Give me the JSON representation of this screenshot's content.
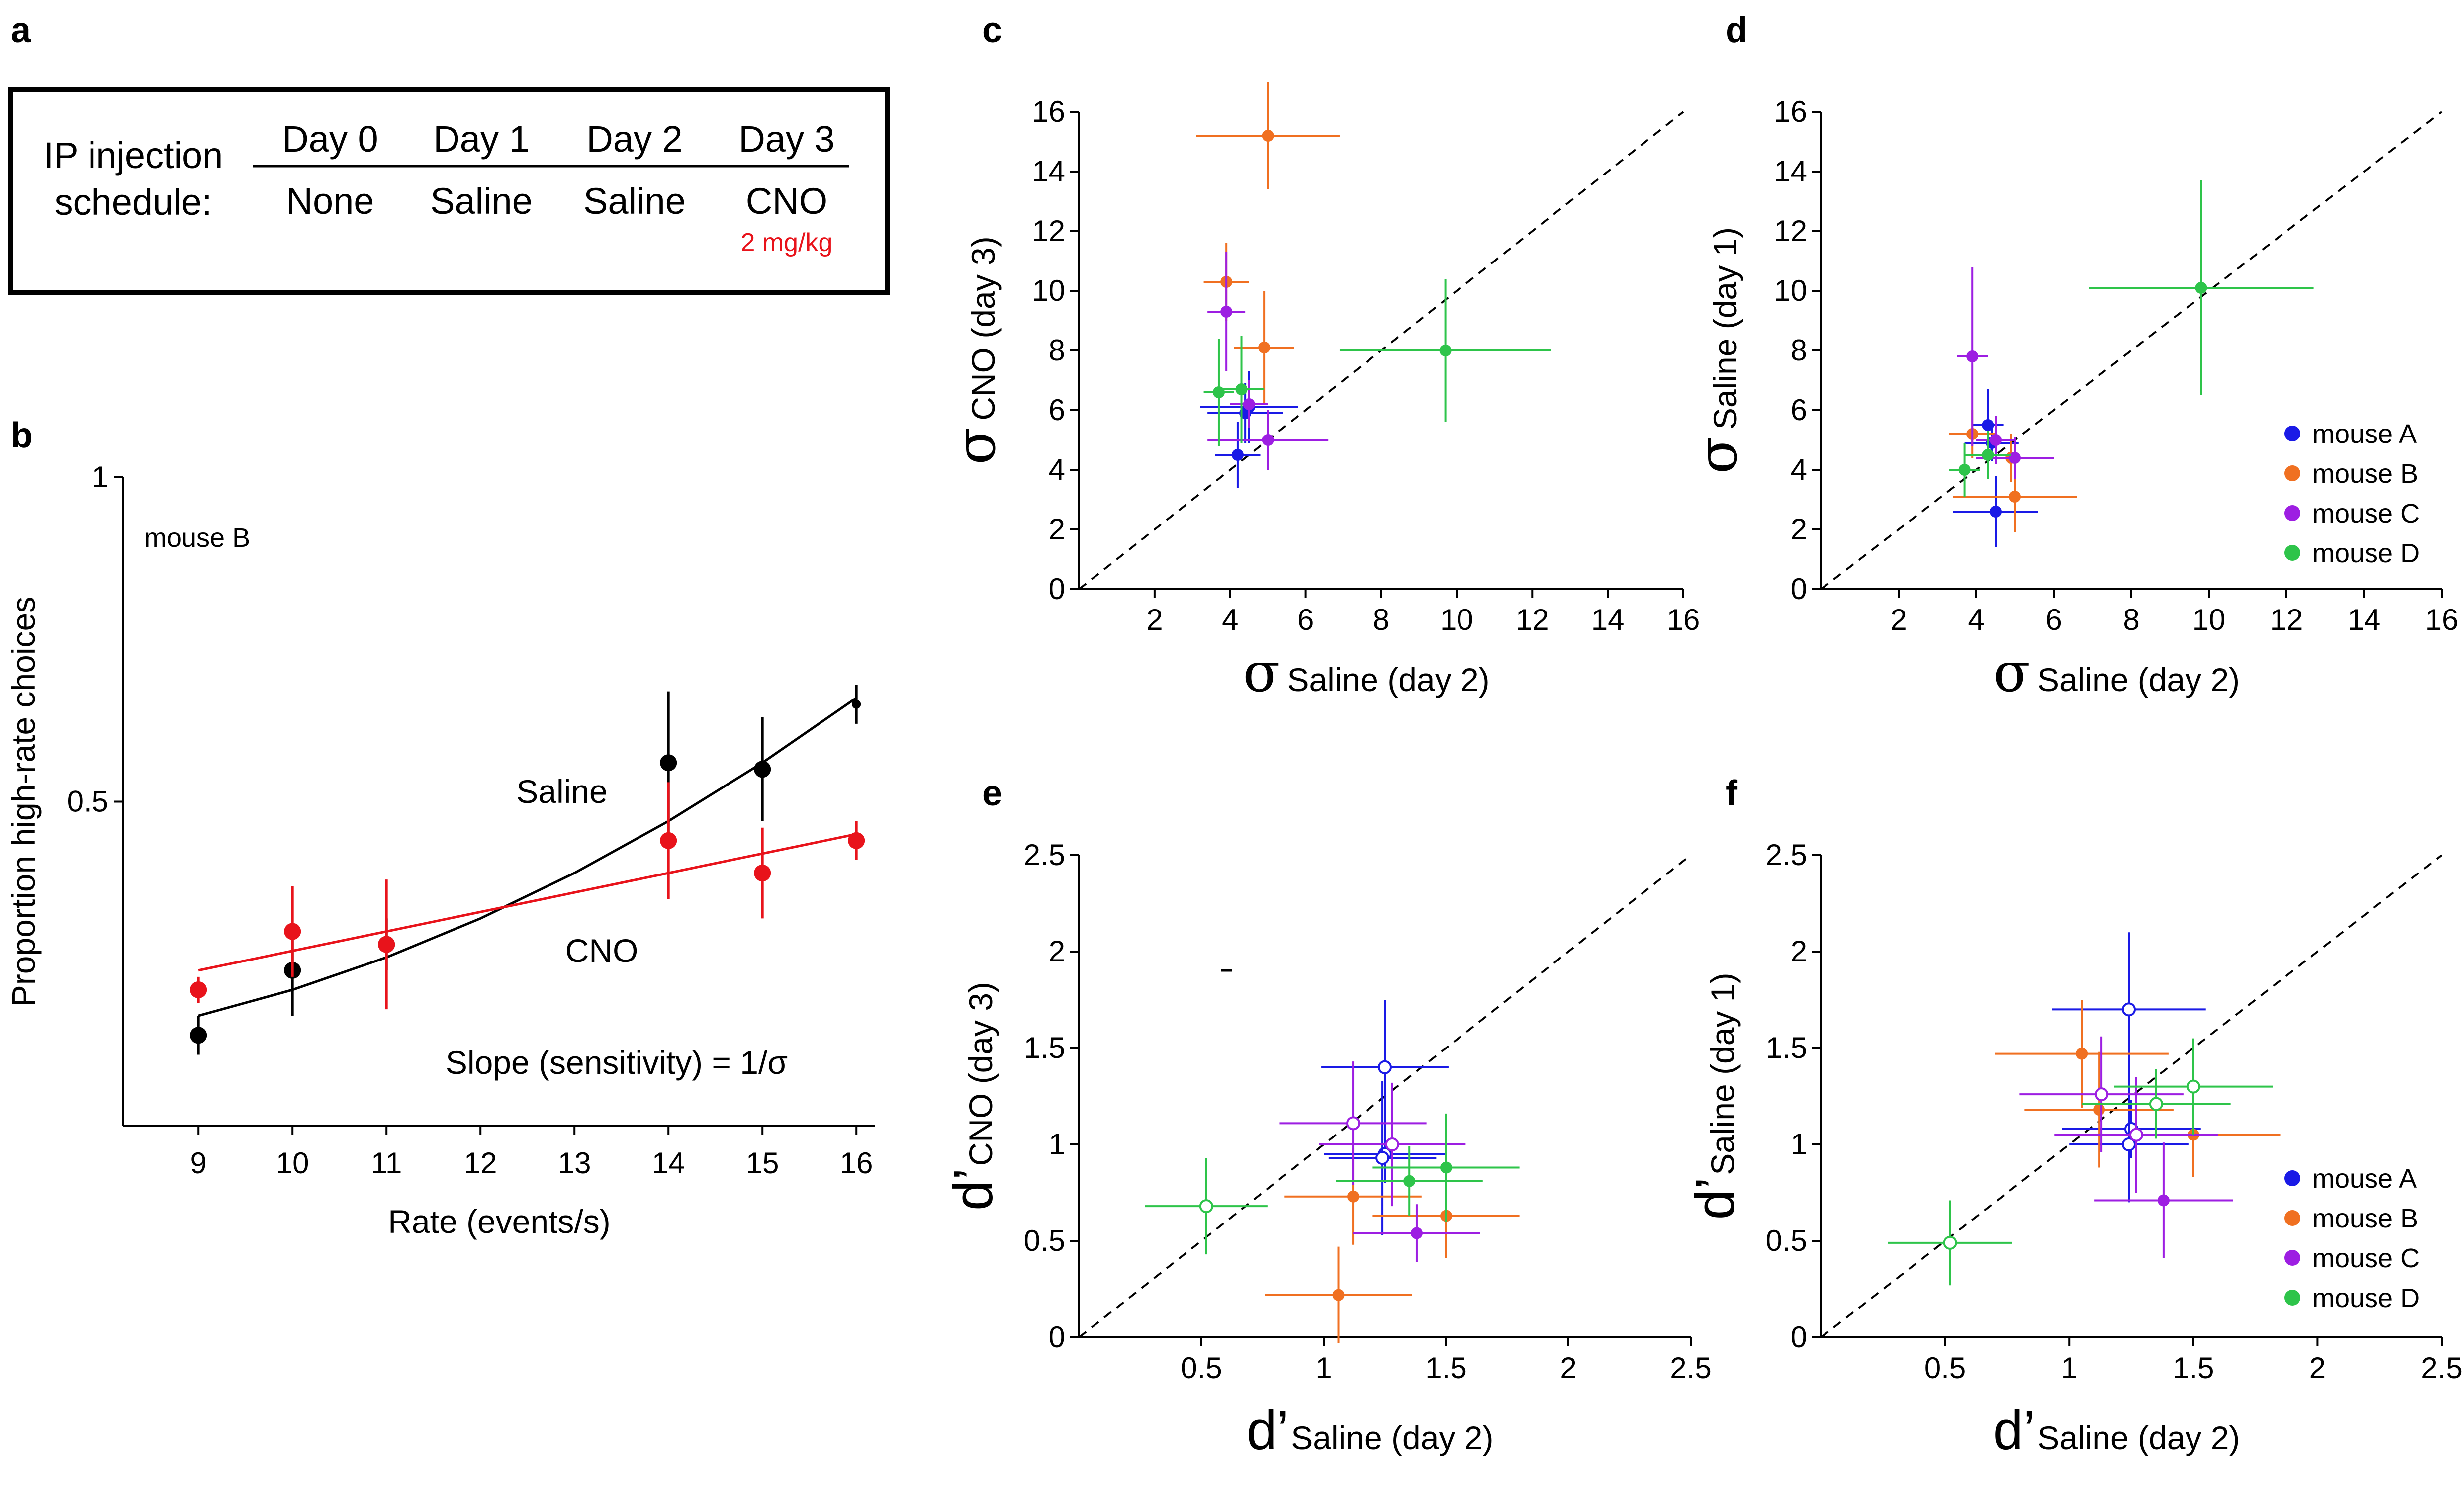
{
  "panels": {
    "a": "a",
    "b": "b",
    "c": "c",
    "d": "d",
    "e": "e",
    "f": "f"
  },
  "schedule": {
    "heading_line1": "IP injection",
    "heading_line2": "schedule:",
    "days": [
      "Day 0",
      "Day 1",
      "Day 2",
      "Day 3"
    ],
    "treatments": [
      "None",
      "Saline",
      "Saline",
      "CNO"
    ],
    "cno_dose": "2 mg/kg",
    "colors": {
      "text": "#000000",
      "cno": "#e8131b"
    }
  },
  "chart_data": [
    {
      "id": "b",
      "type": "scatter",
      "annotation": "mouse B",
      "ylabel": "Proportion high-rate choices",
      "xlabel": "Rate (events/s)",
      "xlim": [
        8.2,
        16.2
      ],
      "ylim": [
        0,
        1
      ],
      "xticks": [
        9,
        10,
        11,
        12,
        13,
        14,
        15,
        16
      ],
      "yticks": [
        {
          "v": 0.5,
          "label": "0.5"
        },
        {
          "v": 1,
          "label": "1"
        }
      ],
      "series": [
        {
          "name": "Saline",
          "color": "#000000",
          "x": [
            9,
            10,
            11,
            14,
            15,
            16
          ],
          "y": [
            0.14,
            0.24,
            0.28,
            0.56,
            0.55,
            0.65
          ],
          "err": [
            0.03,
            0.07,
            0.04,
            0.11,
            0.08,
            0.03
          ],
          "fit_x": [
            9,
            10,
            11,
            12,
            13,
            14,
            15,
            16
          ],
          "fit_y": [
            0.17,
            0.21,
            0.26,
            0.32,
            0.39,
            0.47,
            0.56,
            0.66
          ]
        },
        {
          "name": "CNO",
          "color": "#e8131b",
          "x": [
            9,
            10,
            11,
            14,
            15,
            16
          ],
          "y": [
            0.21,
            0.3,
            0.28,
            0.44,
            0.39,
            0.44
          ],
          "err": [
            0.02,
            0.07,
            0.1,
            0.09,
            0.07,
            0.03
          ],
          "fit_x": [
            9,
            16
          ],
          "fit_y": [
            0.24,
            0.45
          ]
        }
      ],
      "labels": {
        "saline": "Saline",
        "cno": "CNO",
        "slope": "Slope (sensitivity) = 1/σ"
      }
    },
    {
      "id": "c",
      "type": "scatter",
      "xlabel_main": "σ",
      "xlabel_sub": "Saline (day 2)",
      "ylabel_main": "σ",
      "ylabel_sub": "CNO (day 3)",
      "xlim": [
        0,
        16
      ],
      "ylim": [
        0,
        16
      ],
      "xticks": [
        2,
        4,
        6,
        8,
        10,
        12,
        14,
        16
      ],
      "yticks": [
        0,
        2,
        4,
        6,
        8,
        10,
        12,
        14,
        16
      ],
      "diagonal": true,
      "points": [
        {
          "mouse": "A",
          "x": 4.2,
          "y": 4.5,
          "xerr": 0.6,
          "yerr": 1.1,
          "open": false
        },
        {
          "mouse": "A",
          "x": 4.4,
          "y": 5.9,
          "xerr": 1.0,
          "yerr": 1.0,
          "open": false
        },
        {
          "mouse": "A",
          "x": 4.5,
          "y": 6.1,
          "xerr": 1.3,
          "yerr": 1.2,
          "open": false
        },
        {
          "mouse": "B",
          "x": 5.0,
          "y": 15.2,
          "xerr": 1.9,
          "yerr": 1.8,
          "open": false
        },
        {
          "mouse": "B",
          "x": 3.9,
          "y": 10.3,
          "xerr": 0.6,
          "yerr": 1.3,
          "open": false
        },
        {
          "mouse": "B",
          "x": 4.9,
          "y": 8.1,
          "xerr": 0.8,
          "yerr": 1.9,
          "open": false
        },
        {
          "mouse": "C",
          "x": 3.9,
          "y": 9.3,
          "xerr": 0.5,
          "yerr": 2.0,
          "open": false
        },
        {
          "mouse": "C",
          "x": 4.5,
          "y": 6.2,
          "xerr": 0.5,
          "yerr": 0.8,
          "open": false
        },
        {
          "mouse": "C",
          "x": 5.0,
          "y": 5.0,
          "xerr": 1.6,
          "yerr": 1.0,
          "open": false
        },
        {
          "mouse": "D",
          "x": 3.7,
          "y": 6.6,
          "xerr": 0.4,
          "yerr": 1.8,
          "open": false
        },
        {
          "mouse": "D",
          "x": 4.3,
          "y": 6.7,
          "xerr": 0.6,
          "yerr": 1.8,
          "open": false
        },
        {
          "mouse": "D",
          "x": 9.7,
          "y": 8.0,
          "xerr": 2.8,
          "yerr": 2.4,
          "open": false
        }
      ]
    },
    {
      "id": "d",
      "type": "scatter",
      "xlabel_main": "σ",
      "xlabel_sub": "Saline (day 2)",
      "ylabel_main": "σ",
      "ylabel_sub": "Saline (day 1)",
      "xlim": [
        0,
        16
      ],
      "ylim": [
        0,
        16
      ],
      "xticks": [
        2,
        4,
        6,
        8,
        10,
        12,
        14,
        16
      ],
      "yticks": [
        0,
        2,
        4,
        6,
        8,
        10,
        12,
        14,
        16
      ],
      "diagonal": true,
      "legend": true,
      "points": [
        {
          "mouse": "A",
          "x": 4.3,
          "y": 5.5,
          "xerr": 0.4,
          "yerr": 1.2,
          "open": false
        },
        {
          "mouse": "A",
          "x": 4.5,
          "y": 2.6,
          "xerr": 1.1,
          "yerr": 1.2,
          "open": false
        },
        {
          "mouse": "A",
          "x": 4.4,
          "y": 4.9,
          "xerr": 0.7,
          "yerr": 0.6,
          "open": false
        },
        {
          "mouse": "B",
          "x": 5.0,
          "y": 3.1,
          "xerr": 1.6,
          "yerr": 1.2,
          "open": false
        },
        {
          "mouse": "B",
          "x": 3.9,
          "y": 5.2,
          "xerr": 0.6,
          "yerr": 0.8,
          "open": false
        },
        {
          "mouse": "B",
          "x": 4.9,
          "y": 4.4,
          "xerr": 0.7,
          "yerr": 0.8,
          "open": false
        },
        {
          "mouse": "C",
          "x": 3.9,
          "y": 7.8,
          "xerr": 0.4,
          "yerr": 3.0,
          "open": false
        },
        {
          "mouse": "C",
          "x": 4.5,
          "y": 5.0,
          "xerr": 0.5,
          "yerr": 0.8,
          "open": false
        },
        {
          "mouse": "C",
          "x": 5.0,
          "y": 4.4,
          "xerr": 1.0,
          "yerr": 0.7,
          "open": false
        },
        {
          "mouse": "D",
          "x": 3.7,
          "y": 4.0,
          "xerr": 0.4,
          "yerr": 0.9,
          "open": false
        },
        {
          "mouse": "D",
          "x": 4.3,
          "y": 4.5,
          "xerr": 0.6,
          "yerr": 0.8,
          "open": false
        },
        {
          "mouse": "D",
          "x": 9.8,
          "y": 10.1,
          "xerr": 2.9,
          "yerr": 3.6,
          "open": false
        }
      ]
    },
    {
      "id": "e",
      "type": "scatter",
      "xlabel_main": "d’",
      "xlabel_sub": "Saline (day 2)",
      "ylabel_main": "d’",
      "ylabel_sub": "CNO (day 3)",
      "xlim": [
        0,
        2.5
      ],
      "ylim": [
        0,
        2.5
      ],
      "xticks": [
        0.5,
        1,
        1.5,
        2,
        2.5
      ],
      "yticks": [
        0,
        0.5,
        1,
        1.5,
        2,
        2.5
      ],
      "diagonal": true,
      "points": [
        {
          "mouse": "A",
          "x": 1.25,
          "y": 1.4,
          "xerr": 0.26,
          "yerr": 0.35,
          "open": true
        },
        {
          "mouse": "A",
          "x": 1.25,
          "y": 0.95,
          "xerr": 0.25,
          "yerr": 0.15,
          "open": true
        },
        {
          "mouse": "A",
          "x": 1.24,
          "y": 0.93,
          "xerr": 0.22,
          "yerr": 0.4,
          "open": true
        },
        {
          "mouse": "B",
          "x": 1.12,
          "y": 0.73,
          "xerr": 0.28,
          "yerr": 0.25,
          "open": false
        },
        {
          "mouse": "B",
          "x": 1.5,
          "y": 0.63,
          "xerr": 0.3,
          "yerr": 0.22,
          "open": false
        },
        {
          "mouse": "B",
          "x": 1.06,
          "y": 0.22,
          "xerr": 0.3,
          "yerr": 0.25,
          "open": false
        },
        {
          "mouse": "C",
          "x": 1.12,
          "y": 1.11,
          "xerr": 0.3,
          "yerr": 0.32,
          "open": true
        },
        {
          "mouse": "C",
          "x": 1.28,
          "y": 1.0,
          "xerr": 0.3,
          "yerr": 0.32,
          "open": true
        },
        {
          "mouse": "C",
          "x": 1.38,
          "y": 0.54,
          "xerr": 0.26,
          "yerr": 0.15,
          "open": false
        },
        {
          "mouse": "D",
          "x": 0.52,
          "y": 0.68,
          "xerr": 0.25,
          "yerr": 0.25,
          "open": true
        },
        {
          "mouse": "D",
          "x": 1.35,
          "y": 0.81,
          "xerr": 0.3,
          "yerr": 0.18,
          "open": false
        },
        {
          "mouse": "D",
          "x": 1.5,
          "y": 0.88,
          "xerr": 0.3,
          "yerr": 0.28,
          "open": false
        }
      ]
    },
    {
      "id": "f",
      "type": "scatter",
      "xlabel_main": "d’",
      "xlabel_sub": "Saline (day 2)",
      "ylabel_main": "d’",
      "ylabel_sub": "Saline (day 1)",
      "xlim": [
        0,
        2.5
      ],
      "ylim": [
        0,
        2.5
      ],
      "xticks": [
        0.5,
        1,
        1.5,
        2,
        2.5
      ],
      "yticks": [
        0,
        0.5,
        1,
        1.5,
        2,
        2.5
      ],
      "diagonal": true,
      "legend": true,
      "points": [
        {
          "mouse": "A",
          "x": 1.24,
          "y": 1.7,
          "xerr": 0.31,
          "yerr": 0.4,
          "open": true
        },
        {
          "mouse": "A",
          "x": 1.25,
          "y": 1.08,
          "xerr": 0.28,
          "yerr": 0.15,
          "open": true
        },
        {
          "mouse": "A",
          "x": 1.24,
          "y": 1.0,
          "xerr": 0.24,
          "yerr": 0.3,
          "open": true
        },
        {
          "mouse": "B",
          "x": 1.05,
          "y": 1.47,
          "xerr": 0.35,
          "yerr": 0.28,
          "open": false
        },
        {
          "mouse": "B",
          "x": 1.5,
          "y": 1.05,
          "xerr": 0.35,
          "yerr": 0.22,
          "open": false
        },
        {
          "mouse": "B",
          "x": 1.12,
          "y": 1.18,
          "xerr": 0.3,
          "yerr": 0.3,
          "open": false
        },
        {
          "mouse": "C",
          "x": 1.13,
          "y": 1.26,
          "xerr": 0.33,
          "yerr": 0.3,
          "open": true
        },
        {
          "mouse": "C",
          "x": 1.27,
          "y": 1.05,
          "xerr": 0.33,
          "yerr": 0.3,
          "open": true
        },
        {
          "mouse": "C",
          "x": 1.38,
          "y": 0.71,
          "xerr": 0.28,
          "yerr": 0.3,
          "open": false
        },
        {
          "mouse": "D",
          "x": 0.52,
          "y": 0.49,
          "xerr": 0.25,
          "yerr": 0.22,
          "open": true
        },
        {
          "mouse": "D",
          "x": 1.35,
          "y": 1.21,
          "xerr": 0.3,
          "yerr": 0.18,
          "open": true
        },
        {
          "mouse": "D",
          "x": 1.5,
          "y": 1.3,
          "xerr": 0.32,
          "yerr": 0.25,
          "open": true
        }
      ]
    }
  ],
  "legend": [
    {
      "mouse": "A",
      "label": "mouse A"
    },
    {
      "mouse": "B",
      "label": "mouse B"
    },
    {
      "mouse": "C",
      "label": "mouse C"
    },
    {
      "mouse": "D",
      "label": "mouse D"
    }
  ],
  "mouse_colors": {
    "A": "#1a1ae6",
    "B": "#f07021",
    "C": "#9d1ee2",
    "D": "#2ec44a"
  }
}
